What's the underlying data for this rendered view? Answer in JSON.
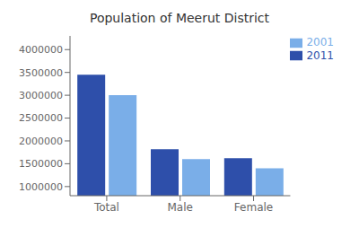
{
  "chart_data": {
    "type": "bar",
    "title": "Population of Meerut District",
    "categories": [
      "Total",
      "Male",
      "Female"
    ],
    "series": [
      {
        "name": "2011",
        "color": "#2e4faa",
        "values": [
          3450000,
          1820000,
          1620000
        ]
      },
      {
        "name": "2001",
        "color": "#7aaee8",
        "values": [
          3000000,
          1600000,
          1400000
        ]
      }
    ],
    "ylim": [
      800000,
      4300000
    ],
    "yticks": [
      1000000,
      1500000,
      2000000,
      2500000,
      3000000,
      3500000,
      4000000
    ],
    "grid": false,
    "legend": "upper right"
  }
}
